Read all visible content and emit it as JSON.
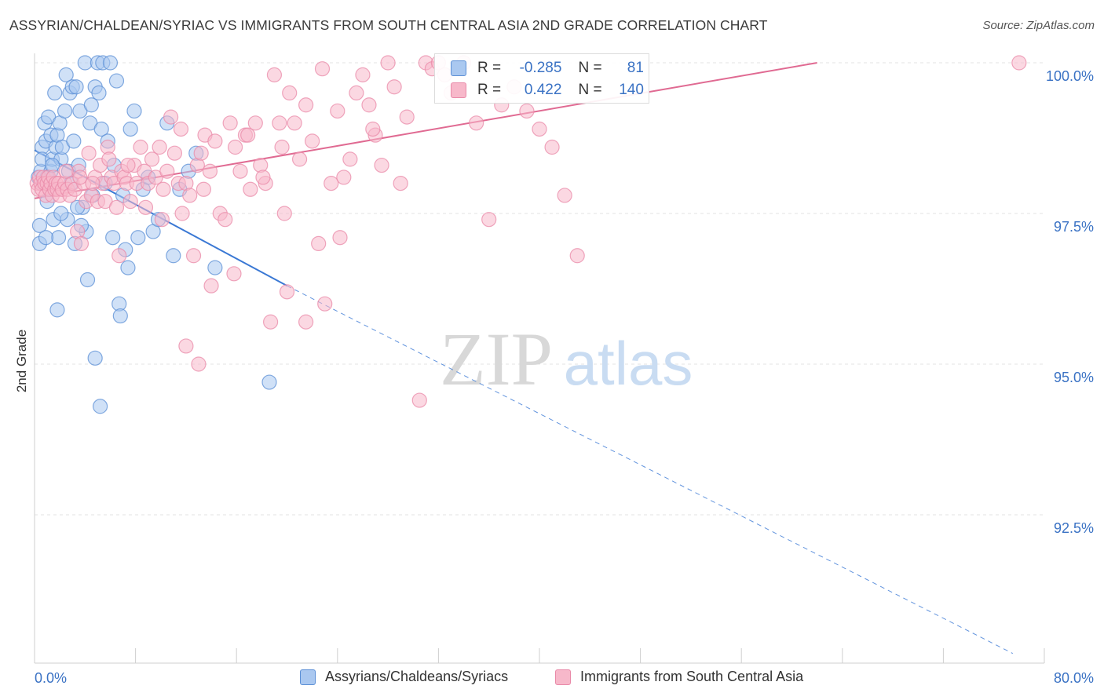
{
  "title": "ASSYRIAN/CHALDEAN/SYRIAC VS IMMIGRANTS FROM SOUTH CENTRAL ASIA 2ND GRADE CORRELATION CHART",
  "source": "Source: ZipAtlas.com",
  "watermark": {
    "zip": "ZIP",
    "atlas": "atlas"
  },
  "stats": {
    "rows": [
      {
        "r_label": "R =",
        "r_value": "-0.285",
        "n_label": "N =",
        "n_value": "81"
      },
      {
        "r_label": "R =",
        "r_value": "0.422",
        "n_label": "N =",
        "n_value": "140"
      }
    ]
  },
  "legend": {
    "series1": "Assyrians/Chaldeans/Syriacs",
    "series2": "Immigrants from South Central Asia"
  },
  "colors": {
    "blue_fill": "#aac8f0",
    "blue_stroke": "#5b8fd6",
    "blue_line": "#3a78d4",
    "pink_fill": "#f7b8ca",
    "pink_stroke": "#e989a8",
    "pink_line": "#e06a92",
    "tick_text": "#3a72c4",
    "grid": "#e3e3e3"
  },
  "chart_data": {
    "type": "scatter",
    "xlabel": "",
    "ylabel": "2nd Grade",
    "xlim": [
      0,
      80
    ],
    "ylim": [
      90.2,
      100.2
    ],
    "x_tick_labels": [
      "0.0%",
      "80.0%"
    ],
    "y_ticks": [
      100.0,
      97.5,
      95.0,
      92.5
    ],
    "y_tick_labels": [
      "100.0%",
      "97.5%",
      "95.0%",
      "92.5%"
    ],
    "grid": "horizontal dashed",
    "legend_position": "bottom",
    "series": [
      {
        "name": "Assyrians/Chaldeans/Syriacs",
        "color": "#aac8f0",
        "R": -0.285,
        "N": 81,
        "trend": {
          "x": [
            0,
            20
          ],
          "y": [
            98.55,
            96.3
          ],
          "dashed_to": [
            77.5,
            90.2
          ]
        },
        "points": [
          [
            0.3,
            98.1
          ],
          [
            0.4,
            97.3
          ],
          [
            0.4,
            97.0
          ],
          [
            0.5,
            98.2
          ],
          [
            0.6,
            98.6
          ],
          [
            0.6,
            98.4
          ],
          [
            0.7,
            98.0
          ],
          [
            0.8,
            99.0
          ],
          [
            0.9,
            98.7
          ],
          [
            1.0,
            98.1
          ],
          [
            1.0,
            97.7
          ],
          [
            1.1,
            99.1
          ],
          [
            1.2,
            97.9
          ],
          [
            1.3,
            98.8
          ],
          [
            1.3,
            98.2
          ],
          [
            1.4,
            98.4
          ],
          [
            1.5,
            97.4
          ],
          [
            1.6,
            99.5
          ],
          [
            1.7,
            98.6
          ],
          [
            1.8,
            98.8
          ],
          [
            1.9,
            97.1
          ],
          [
            2.0,
            99.0
          ],
          [
            2.1,
            98.4
          ],
          [
            2.2,
            98.6
          ],
          [
            2.4,
            99.2
          ],
          [
            2.5,
            99.8
          ],
          [
            2.6,
            97.4
          ],
          [
            2.7,
            98.2
          ],
          [
            2.8,
            99.5
          ],
          [
            3.0,
            99.6
          ],
          [
            3.1,
            98.7
          ],
          [
            3.2,
            97.0
          ],
          [
            3.3,
            99.6
          ],
          [
            3.5,
            98.3
          ],
          [
            3.6,
            99.2
          ],
          [
            3.8,
            97.6
          ],
          [
            4.0,
            100.0
          ],
          [
            4.1,
            97.2
          ],
          [
            4.2,
            96.4
          ],
          [
            4.4,
            99.0
          ],
          [
            4.5,
            99.3
          ],
          [
            4.6,
            97.8
          ],
          [
            4.8,
            99.6
          ],
          [
            5.0,
            100.0
          ],
          [
            5.1,
            99.5
          ],
          [
            5.3,
            98.9
          ],
          [
            5.4,
            100.0
          ],
          [
            5.6,
            98.0
          ],
          [
            5.8,
            98.7
          ],
          [
            6.0,
            100.0
          ],
          [
            6.2,
            97.1
          ],
          [
            6.3,
            98.3
          ],
          [
            6.5,
            99.7
          ],
          [
            6.7,
            96.0
          ],
          [
            6.8,
            95.8
          ],
          [
            7.0,
            97.8
          ],
          [
            7.2,
            96.9
          ],
          [
            7.4,
            96.6
          ],
          [
            7.6,
            98.9
          ],
          [
            7.9,
            99.2
          ],
          [
            8.2,
            97.1
          ],
          [
            8.6,
            97.9
          ],
          [
            9.0,
            98.1
          ],
          [
            9.4,
            97.2
          ],
          [
            9.8,
            97.4
          ],
          [
            10.5,
            99.0
          ],
          [
            11.0,
            96.8
          ],
          [
            11.5,
            97.9
          ],
          [
            12.2,
            98.2
          ],
          [
            12.8,
            98.5
          ],
          [
            14.3,
            96.6
          ],
          [
            18.6,
            94.7
          ],
          [
            4.8,
            95.1
          ],
          [
            5.2,
            94.3
          ],
          [
            1.8,
            95.9
          ],
          [
            0.9,
            97.1
          ],
          [
            2.1,
            97.5
          ],
          [
            3.4,
            97.6
          ],
          [
            1.4,
            98.3
          ],
          [
            2.9,
            98.0
          ],
          [
            3.7,
            97.3
          ]
        ]
      },
      {
        "name": "Immigrants from South Central Asia",
        "color": "#f7b8ca",
        "R": 0.422,
        "N": 140,
        "trend": {
          "x": [
            0,
            62
          ],
          "y": [
            97.75,
            100.0
          ]
        },
        "points": [
          [
            0.2,
            98.0
          ],
          [
            0.3,
            97.9
          ],
          [
            0.4,
            98.1
          ],
          [
            0.5,
            98.0
          ],
          [
            0.6,
            97.9
          ],
          [
            0.7,
            98.1
          ],
          [
            0.8,
            98.0
          ],
          [
            0.9,
            97.8
          ],
          [
            1.0,
            98.0
          ],
          [
            1.1,
            98.1
          ],
          [
            1.2,
            97.9
          ],
          [
            1.3,
            98.0
          ],
          [
            1.4,
            97.8
          ],
          [
            1.5,
            98.1
          ],
          [
            1.6,
            97.9
          ],
          [
            1.7,
            98.0
          ],
          [
            1.8,
            97.9
          ],
          [
            1.9,
            98.0
          ],
          [
            2.0,
            97.8
          ],
          [
            2.2,
            97.9
          ],
          [
            2.4,
            98.0
          ],
          [
            2.6,
            97.9
          ],
          [
            2.8,
            97.8
          ],
          [
            3.0,
            98.0
          ],
          [
            3.2,
            97.9
          ],
          [
            3.4,
            97.2
          ],
          [
            3.5,
            98.2
          ],
          [
            3.7,
            97.0
          ],
          [
            3.9,
            98.0
          ],
          [
            4.1,
            97.7
          ],
          [
            4.3,
            98.5
          ],
          [
            4.5,
            97.8
          ],
          [
            4.8,
            98.1
          ],
          [
            5.0,
            97.7
          ],
          [
            5.2,
            98.3
          ],
          [
            5.4,
            98.0
          ],
          [
            5.6,
            97.7
          ],
          [
            5.8,
            98.6
          ],
          [
            6.1,
            98.1
          ],
          [
            6.3,
            98.0
          ],
          [
            6.5,
            97.6
          ],
          [
            6.7,
            96.8
          ],
          [
            6.9,
            98.2
          ],
          [
            7.1,
            98.1
          ],
          [
            7.3,
            98.0
          ],
          [
            7.6,
            97.7
          ],
          [
            7.9,
            98.3
          ],
          [
            8.1,
            98.0
          ],
          [
            8.4,
            98.6
          ],
          [
            8.7,
            98.2
          ],
          [
            9.0,
            98.0
          ],
          [
            9.3,
            98.4
          ],
          [
            9.6,
            98.1
          ],
          [
            9.9,
            98.6
          ],
          [
            10.2,
            97.9
          ],
          [
            10.5,
            98.2
          ],
          [
            10.8,
            99.1
          ],
          [
            11.1,
            98.5
          ],
          [
            11.4,
            98.0
          ],
          [
            11.7,
            97.5
          ],
          [
            12.0,
            98.0
          ],
          [
            12.3,
            97.8
          ],
          [
            12.6,
            96.8
          ],
          [
            12.9,
            98.3
          ],
          [
            13.2,
            98.5
          ],
          [
            13.5,
            98.8
          ],
          [
            13.9,
            98.2
          ],
          [
            14.3,
            98.7
          ],
          [
            14.7,
            97.5
          ],
          [
            15.1,
            97.4
          ],
          [
            15.5,
            99.0
          ],
          [
            15.9,
            98.6
          ],
          [
            16.3,
            98.2
          ],
          [
            16.7,
            98.8
          ],
          [
            17.1,
            97.9
          ],
          [
            17.5,
            99.0
          ],
          [
            17.9,
            98.3
          ],
          [
            18.3,
            98.0
          ],
          [
            18.7,
            95.7
          ],
          [
            19.0,
            99.8
          ],
          [
            19.4,
            99.0
          ],
          [
            19.8,
            97.5
          ],
          [
            20.2,
            99.5
          ],
          [
            20.6,
            99.0
          ],
          [
            21.0,
            98.4
          ],
          [
            21.5,
            99.3
          ],
          [
            22.0,
            98.7
          ],
          [
            22.5,
            97.0
          ],
          [
            23.0,
            96.0
          ],
          [
            23.5,
            98.0
          ],
          [
            24.0,
            99.2
          ],
          [
            24.5,
            98.1
          ],
          [
            25.0,
            98.4
          ],
          [
            25.5,
            99.5
          ],
          [
            26.0,
            99.8
          ],
          [
            26.5,
            99.3
          ],
          [
            27.0,
            98.8
          ],
          [
            27.5,
            98.3
          ],
          [
            28.0,
            100.0
          ],
          [
            28.5,
            99.6
          ],
          [
            29.0,
            98.0
          ],
          [
            29.5,
            99.1
          ],
          [
            30.5,
            94.4
          ],
          [
            31.0,
            100.0
          ],
          [
            31.5,
            99.9
          ],
          [
            32.0,
            100.0
          ],
          [
            32.5,
            99.8
          ],
          [
            33.0,
            99.5
          ],
          [
            34.0,
            100.0
          ],
          [
            35.0,
            99.0
          ],
          [
            36.0,
            97.4
          ],
          [
            37.0,
            99.3
          ],
          [
            38.0,
            99.6
          ],
          [
            39.0,
            99.2
          ],
          [
            40.0,
            98.9
          ],
          [
            41.0,
            98.6
          ],
          [
            42.0,
            97.8
          ],
          [
            43.0,
            96.8
          ],
          [
            13.0,
            95.0
          ],
          [
            14.0,
            96.3
          ],
          [
            12.0,
            95.3
          ],
          [
            20.0,
            96.2
          ],
          [
            21.5,
            95.7
          ],
          [
            2.5,
            98.2
          ],
          [
            3.6,
            98.1
          ],
          [
            4.6,
            98.0
          ],
          [
            5.9,
            98.4
          ],
          [
            7.4,
            98.3
          ],
          [
            8.8,
            97.6
          ],
          [
            10.1,
            97.4
          ],
          [
            11.6,
            98.9
          ],
          [
            13.4,
            97.9
          ],
          [
            15.8,
            96.5
          ],
          [
            16.9,
            98.8
          ],
          [
            18.1,
            98.1
          ],
          [
            19.6,
            98.6
          ],
          [
            22.8,
            99.9
          ],
          [
            24.2,
            97.1
          ],
          [
            26.8,
            98.9
          ],
          [
            78.0,
            100.0
          ]
        ]
      }
    ]
  }
}
